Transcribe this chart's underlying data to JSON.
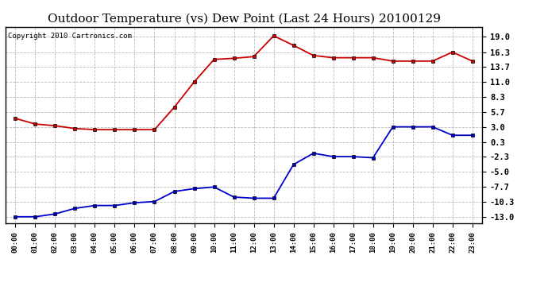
{
  "title": "Outdoor Temperature (vs) Dew Point (Last 24 Hours) 20100129",
  "copyright": "Copyright 2010 Cartronics.com",
  "hours": [
    "00:00",
    "01:00",
    "02:00",
    "03:00",
    "04:00",
    "05:00",
    "06:00",
    "07:00",
    "08:00",
    "09:00",
    "10:00",
    "11:00",
    "12:00",
    "13:00",
    "14:00",
    "15:00",
    "16:00",
    "17:00",
    "18:00",
    "19:00",
    "20:00",
    "21:00",
    "22:00",
    "23:00"
  ],
  "temp_red": [
    4.5,
    3.5,
    3.2,
    2.7,
    2.5,
    2.5,
    2.5,
    2.5,
    6.5,
    11.0,
    15.0,
    15.2,
    15.5,
    19.2,
    17.5,
    15.7,
    15.3,
    15.3,
    15.3,
    14.7,
    14.7,
    14.7,
    16.3,
    14.7
  ],
  "temp_blue": [
    -13.0,
    -13.0,
    -12.5,
    -11.5,
    -11.0,
    -11.0,
    -10.5,
    -10.3,
    -8.5,
    -8.0,
    -7.7,
    -9.5,
    -9.7,
    -9.7,
    -3.7,
    -1.7,
    -2.3,
    -2.3,
    -2.5,
    3.0,
    3.0,
    3.0,
    1.5,
    1.5
  ],
  "yticks": [
    19.0,
    16.3,
    13.7,
    11.0,
    8.3,
    5.7,
    3.0,
    0.3,
    -2.3,
    -5.0,
    -7.7,
    -10.3,
    -13.0
  ],
  "ylim": [
    -14.2,
    20.8
  ],
  "red_color": "#cc0000",
  "blue_color": "#0000cc",
  "bg_color": "#ffffff",
  "grid_color": "#aaaaaa",
  "title_fontsize": 11,
  "copyright_fontsize": 6.5
}
